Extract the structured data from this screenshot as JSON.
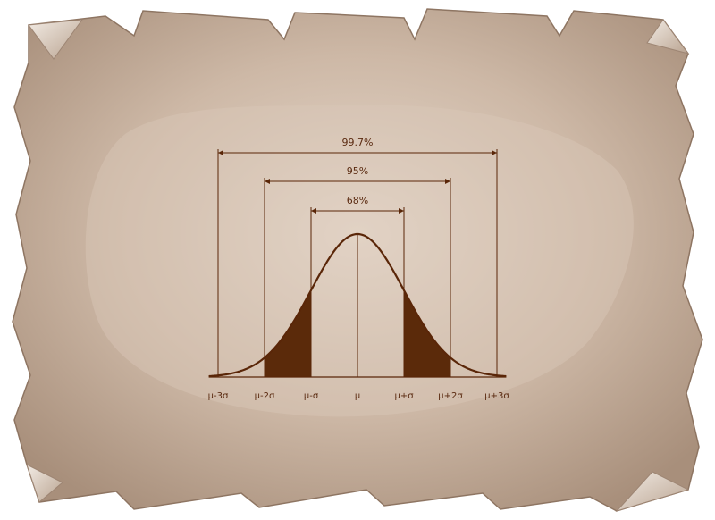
{
  "colors": {
    "paper": "#c7b2a0",
    "paper_light": "#e6d8cb",
    "paper_dark": "#9f8570",
    "ink": "#5a2608",
    "fill": "#5b2a0a"
  },
  "chart_data": {
    "type": "area",
    "curve": "normal-distribution",
    "x_ticks": [
      {
        "sigma": -3,
        "label": "μ-3σ"
      },
      {
        "sigma": -2,
        "label": "μ-2σ"
      },
      {
        "sigma": -1,
        "label": "μ-σ"
      },
      {
        "sigma": 0,
        "label": "μ"
      },
      {
        "sigma": 1,
        "label": "μ+σ"
      },
      {
        "sigma": 2,
        "label": "μ+2σ"
      },
      {
        "sigma": 3,
        "label": "μ+3σ"
      }
    ],
    "intervals": [
      {
        "from": -1,
        "to": 1,
        "label": "68%"
      },
      {
        "from": -2,
        "to": 2,
        "label": "95%"
      },
      {
        "from": -3,
        "to": 3,
        "label": "99.7%"
      }
    ],
    "shaded_regions": [
      {
        "from": -2,
        "to": -1
      },
      {
        "from": 1,
        "to": 2
      }
    ]
  }
}
